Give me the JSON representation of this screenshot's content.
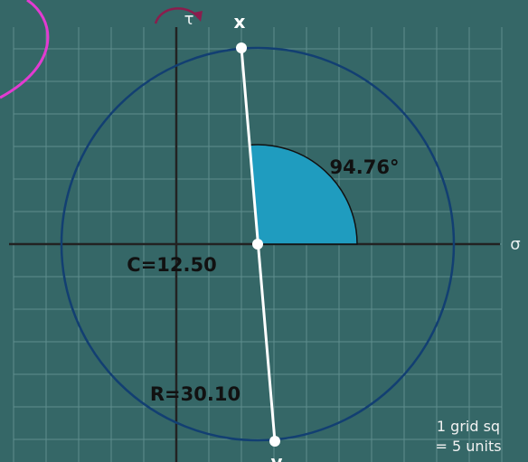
{
  "axes": {
    "tau": "τ",
    "sigma": "σ"
  },
  "points": {
    "top": "x",
    "bottom": "y"
  },
  "angle_label": "94.76°",
  "center_label": "C=12.50",
  "radius_label": "R=30.10",
  "scale_note": [
    "1 grid sq",
    "= 5 units"
  ]
}
